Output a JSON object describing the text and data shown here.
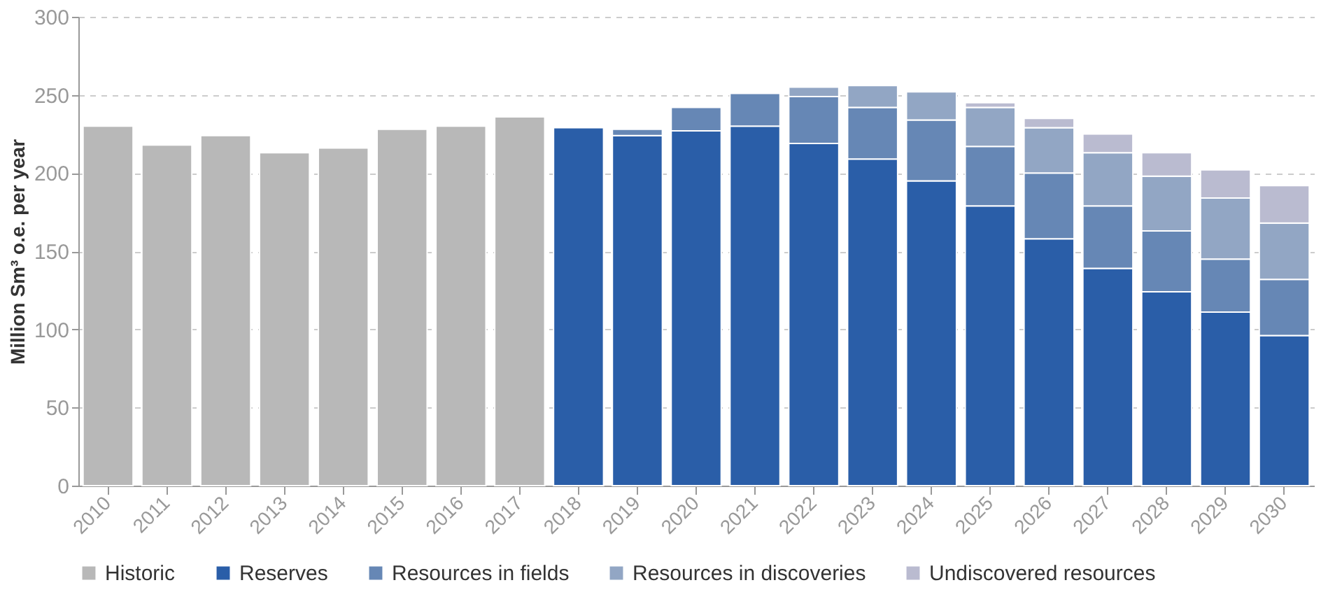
{
  "chart_data": {
    "type": "bar",
    "stacked": true,
    "ylabel": "Million Sm³ o.e. per year",
    "categories": [
      "2010",
      "2011",
      "2012",
      "2013",
      "2014",
      "2015",
      "2016",
      "2017",
      "2018",
      "2019",
      "2020",
      "2021",
      "2022",
      "2023",
      "2024",
      "2025",
      "2026",
      "2027",
      "2028",
      "2029",
      "2030"
    ],
    "series": [
      {
        "name": "Historic",
        "color": "#b8b8b8",
        "values": [
          230,
          218,
          224,
          213,
          216,
          228,
          230,
          236,
          null,
          null,
          null,
          null,
          null,
          null,
          null,
          null,
          null,
          null,
          null,
          null,
          null
        ]
      },
      {
        "name": "Reserves",
        "color": "#2a5ea8",
        "values": [
          null,
          null,
          null,
          null,
          null,
          null,
          null,
          null,
          229,
          224,
          227,
          230,
          219,
          209,
          195,
          179,
          158,
          139,
          124,
          111,
          96
        ]
      },
      {
        "name": "Resources in fields",
        "color": "#6687b5",
        "values": [
          null,
          null,
          null,
          null,
          null,
          null,
          null,
          null,
          null,
          4,
          15,
          21,
          30,
          33,
          39,
          38,
          42,
          40,
          39,
          34,
          36
        ]
      },
      {
        "name": "Resources in discoveries",
        "color": "#92a6c4",
        "values": [
          null,
          null,
          null,
          null,
          null,
          null,
          null,
          null,
          null,
          null,
          null,
          null,
          6,
          14,
          18,
          25,
          29,
          34,
          35,
          39,
          36
        ]
      },
      {
        "name": "Undiscovered resources",
        "color": "#babbd0",
        "values": [
          null,
          null,
          null,
          null,
          null,
          null,
          null,
          null,
          null,
          null,
          null,
          null,
          null,
          null,
          null,
          3,
          6,
          12,
          15,
          18,
          24
        ]
      }
    ],
    "ylim": [
      0,
      300
    ],
    "yticks": [
      0,
      50,
      100,
      150,
      200,
      250,
      300
    ],
    "grid": "y",
    "legend": "bottom"
  }
}
